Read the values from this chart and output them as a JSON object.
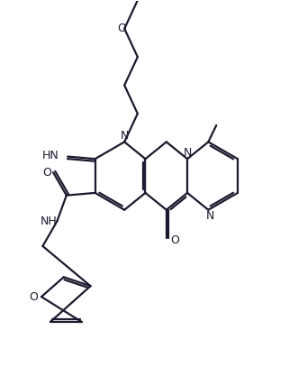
{
  "bg_color": "#ffffff",
  "line_color": "#1a1a2e",
  "line_width": 1.6,
  "dbo": 0.08,
  "figsize": [
    3.21,
    4.07
  ],
  "dpi": 100,
  "xlim": [
    0,
    10
  ],
  "ylim": [
    0,
    12.7
  ]
}
